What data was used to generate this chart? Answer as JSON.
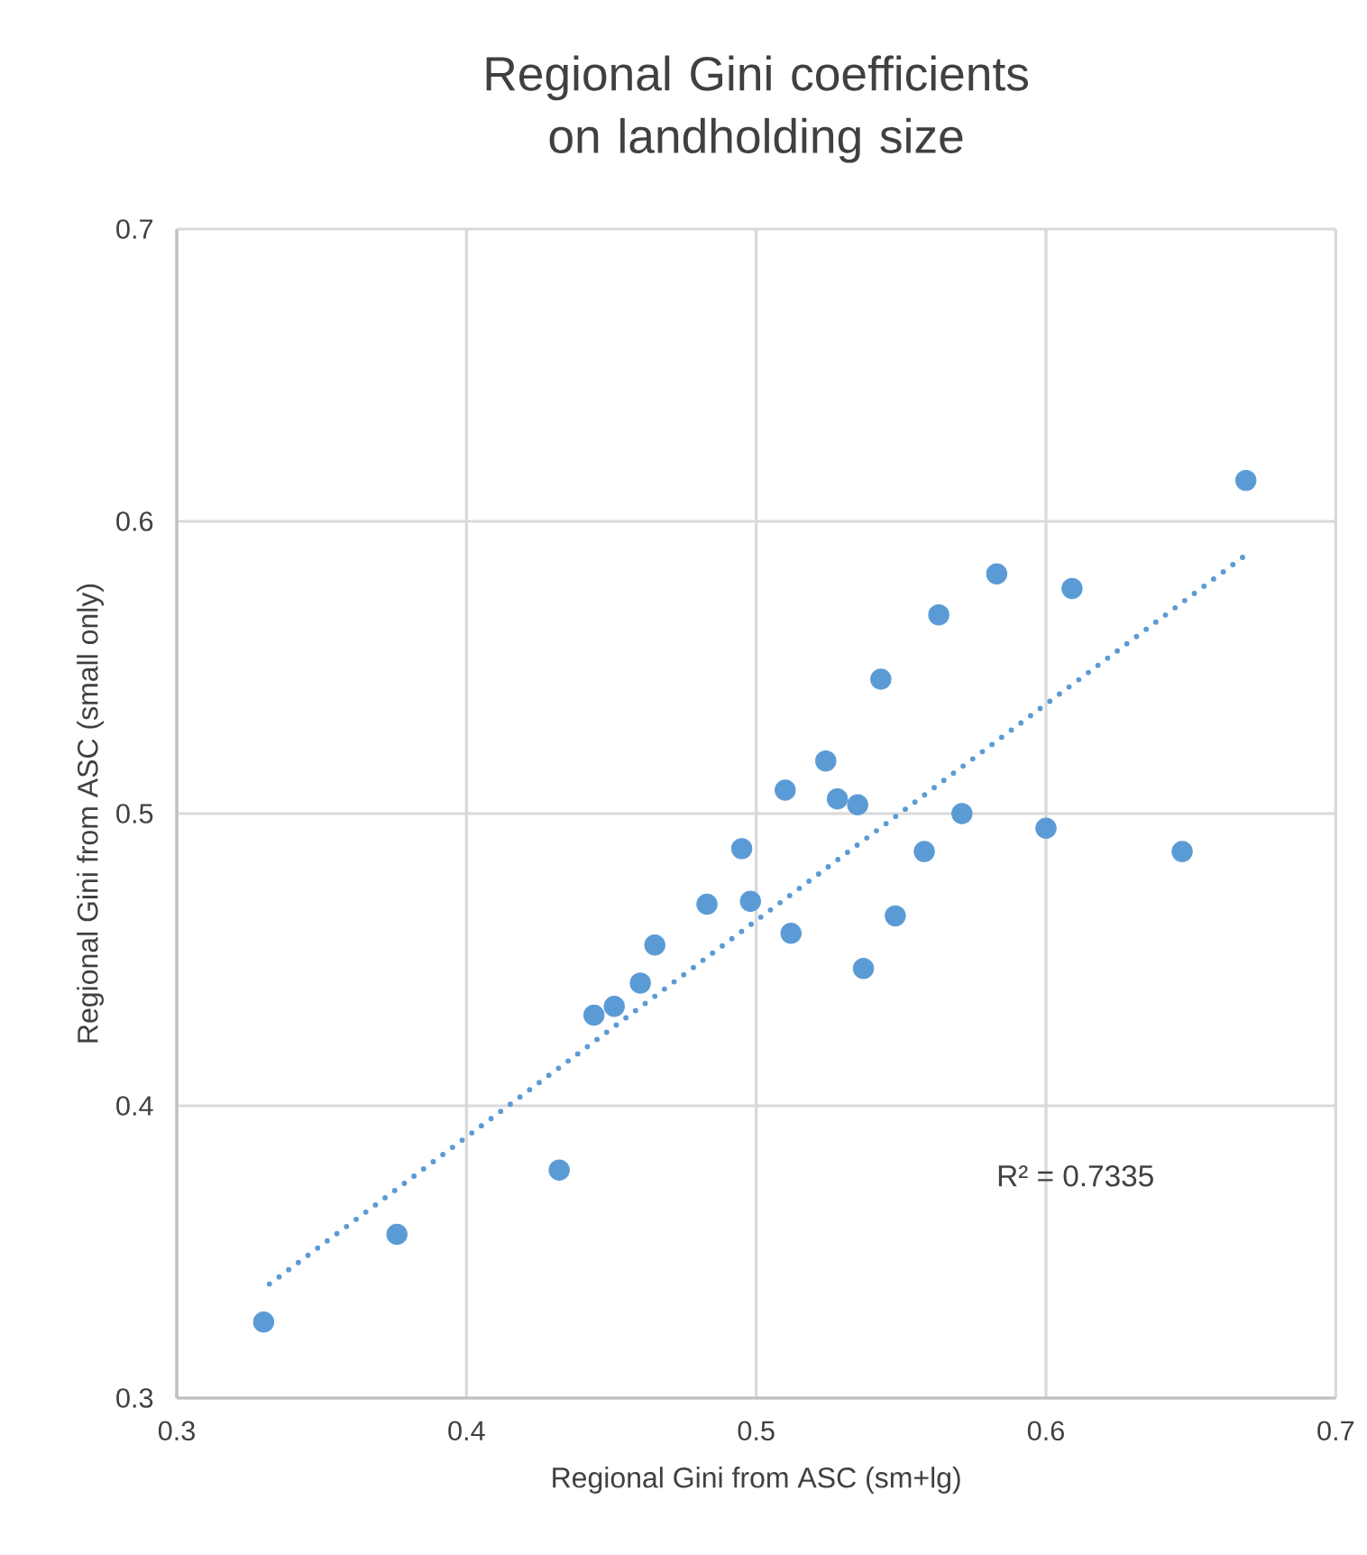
{
  "chart_data": {
    "type": "scatter",
    "title": "Regional Gini coefficients on landholding size",
    "xlabel": "Regional Gini from ASC (sm+lg)",
    "ylabel": "Regional Gini from ASC (small only)",
    "xlim": [
      0.3,
      0.7
    ],
    "ylim": [
      0.3,
      0.7
    ],
    "xticks": [
      0.3,
      0.4,
      0.5,
      0.6,
      0.7
    ],
    "yticks": [
      0.3,
      0.4,
      0.5,
      0.6,
      0.7
    ],
    "grid": true,
    "annotations": [
      "R² = 0.7335"
    ],
    "series": [
      {
        "color": "#5b9bd5",
        "marker": "circle",
        "x": [
          0.33,
          0.376,
          0.432,
          0.444,
          0.451,
          0.46,
          0.465,
          0.483,
          0.495,
          0.498,
          0.51,
          0.512,
          0.524,
          0.528,
          0.535,
          0.537,
          0.543,
          0.548,
          0.558,
          0.563,
          0.571,
          0.583,
          0.6,
          0.609,
          0.647,
          0.669
        ],
        "values": [
          0.326,
          0.356,
          0.378,
          0.431,
          0.434,
          0.442,
          0.455,
          0.469,
          0.488,
          0.47,
          0.508,
          0.459,
          0.518,
          0.505,
          0.503,
          0.447,
          0.546,
          0.465,
          0.487,
          0.568,
          0.5,
          0.582,
          0.495,
          0.577,
          0.487,
          0.614
        ]
      },
      {
        "type": "line",
        "color": "#5b9bd5",
        "line_style": "dotted",
        "marker": "none",
        "x": [
          0.332,
          0.671
        ],
        "values": [
          0.339,
          0.59
        ]
      }
    ]
  }
}
